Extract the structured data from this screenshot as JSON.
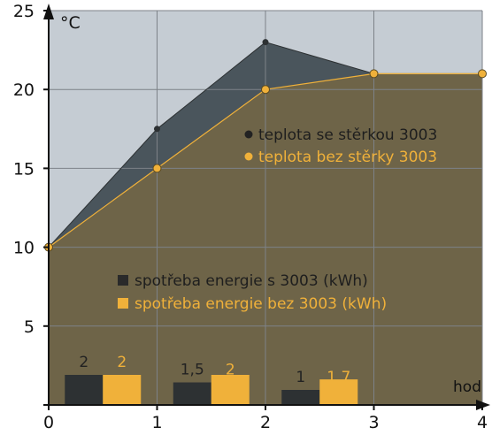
{
  "chart_data": {
    "type": "line",
    "x": [
      0,
      1,
      2,
      3,
      4
    ],
    "xlim": [
      0,
      4
    ],
    "ylim": [
      0,
      25
    ],
    "x_ticks": [
      "0",
      "1",
      "2",
      "3",
      "4"
    ],
    "y_ticks": [
      "5",
      "10",
      "15",
      "20",
      "25"
    ],
    "y_unit": "°C",
    "x_unit": "hod",
    "grid": true,
    "series": [
      {
        "name": "teplota se stěrkou 3003",
        "values": [
          10,
          17.5,
          23,
          21,
          21
        ]
      },
      {
        "name": "teplota bez stěrky 3003",
        "values": [
          10,
          15,
          20,
          21,
          21
        ]
      }
    ],
    "bar_series": [
      {
        "name": "spotřeba energie s 3003 (kWh)",
        "values": [
          2,
          1.5,
          1
        ],
        "labels": [
          "2",
          "1,5",
          "1"
        ]
      },
      {
        "name": "spotřeba energie bez 3003 (kWh)",
        "values": [
          2,
          2,
          1.7
        ],
        "labels": [
          "2",
          "2",
          "1,7"
        ]
      }
    ],
    "colors": {
      "background_fill": "#c5ccd3",
      "with_screed": "#2d3133",
      "without_screed": "#f0b13a",
      "area_with": "#4a555c",
      "area_without": "#6e6448",
      "grid": "#7d8288",
      "axis": "#111111"
    }
  }
}
